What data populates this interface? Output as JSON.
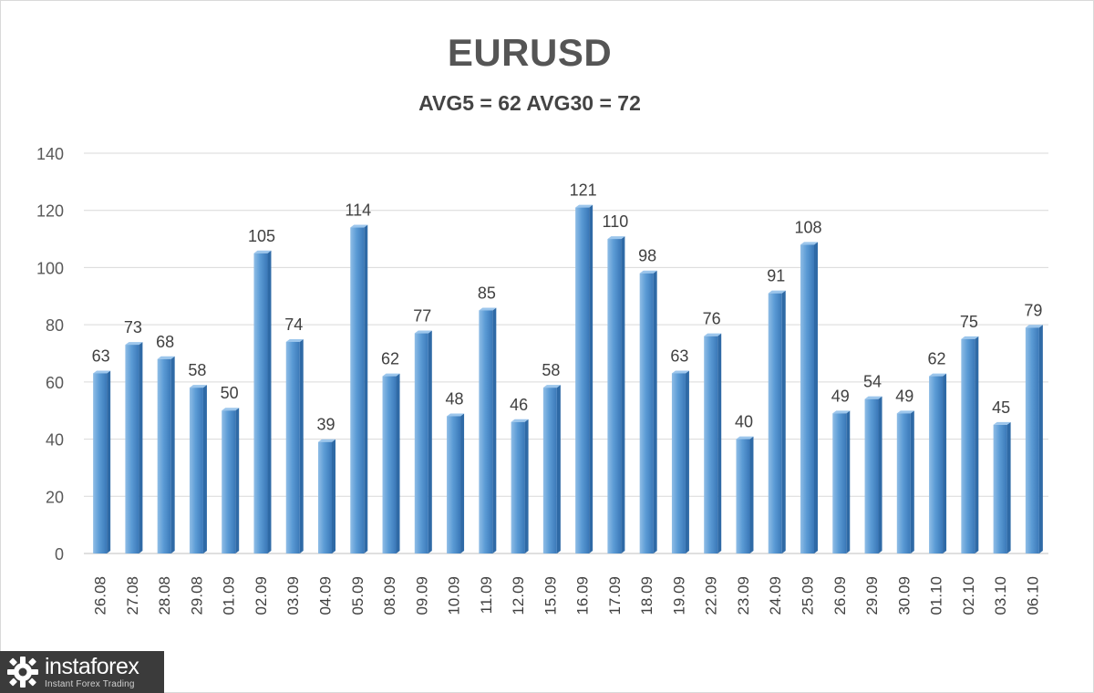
{
  "chart_data": {
    "type": "bar",
    "title": "EURUSD",
    "subtitle": "AVG5 = 62 AVG30 = 72",
    "categories": [
      "26.08",
      "27.08",
      "28.08",
      "29.08",
      "01.09",
      "02.09",
      "03.09",
      "04.09",
      "05.09",
      "08.09",
      "09.09",
      "10.09",
      "11.09",
      "12.09",
      "15.09",
      "16.09",
      "17.09",
      "18.09",
      "19.09",
      "22.09",
      "23.09",
      "24.09",
      "25.09",
      "26.09",
      "29.09",
      "30.09",
      "01.10",
      "02.10",
      "03.10",
      "06.10"
    ],
    "values": [
      63,
      73,
      68,
      58,
      50,
      105,
      74,
      39,
      114,
      62,
      77,
      48,
      85,
      46,
      58,
      121,
      110,
      98,
      63,
      76,
      40,
      91,
      108,
      49,
      54,
      49,
      62,
      75,
      45,
      79
    ],
    "ylim": [
      0,
      140
    ],
    "yticks": [
      0,
      20,
      40,
      60,
      80,
      100,
      120,
      140
    ],
    "grid": true,
    "data_labels": true,
    "bar_color": "#5b9bd5",
    "xlabel": "",
    "ylabel": ""
  },
  "watermark": {
    "name": "instaforex",
    "tagline": "Instant Forex Trading"
  }
}
